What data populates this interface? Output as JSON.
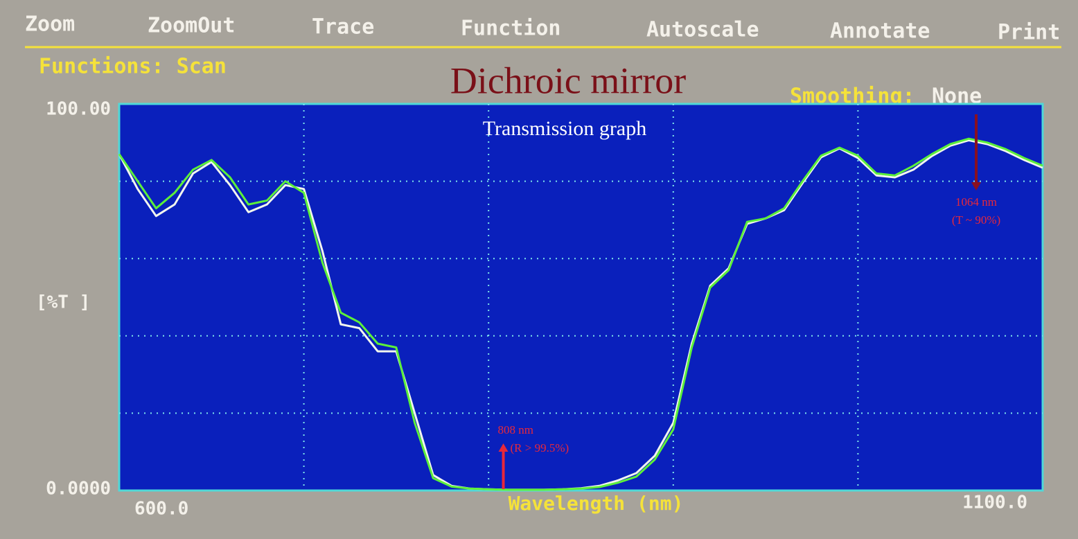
{
  "menu": [
    "Zoom",
    "ZoomOut",
    "Trace",
    "Function",
    "Autoscale",
    "Annotate",
    "Print"
  ],
  "status": {
    "functions": "Functions: Scan",
    "smoothing_label": "Smoothing:",
    "smoothing_value": "None"
  },
  "chart_data": {
    "type": "line",
    "title": "Dichroic mirror",
    "subtitle": "Transmission graph",
    "x_label": "Wavelength (nm)",
    "y_label": "[%T ]",
    "xlim": [
      600,
      1100
    ],
    "ylim": [
      0,
      100
    ],
    "xticks": [
      {
        "value": 600,
        "label": "600.0"
      },
      {
        "value": 1100,
        "label": "1100.0"
      }
    ],
    "yticks": [
      {
        "value": 0,
        "label": "0.0000"
      },
      {
        "value": 100,
        "label": "100.00"
      }
    ],
    "grid": true,
    "xgrid": [
      700,
      800,
      900,
      1000
    ],
    "ygrid": [
      20,
      40,
      60,
      80
    ],
    "x": [
      600,
      610,
      620,
      630,
      640,
      650,
      660,
      670,
      680,
      690,
      700,
      710,
      720,
      730,
      740,
      750,
      760,
      770,
      780,
      790,
      800,
      810,
      820,
      830,
      840,
      850,
      860,
      870,
      880,
      890,
      900,
      910,
      920,
      930,
      940,
      950,
      960,
      970,
      980,
      990,
      1000,
      1010,
      1020,
      1030,
      1040,
      1050,
      1060,
      1070,
      1080,
      1090,
      1100
    ],
    "series": [
      {
        "color": "#f2f6ee",
        "values": [
          87,
          78,
          71,
          74,
          82,
          85,
          79,
          72,
          74,
          79,
          78,
          62,
          43,
          42,
          36,
          36,
          20,
          4,
          1.2,
          0.5,
          0.3,
          0.2,
          0.2,
          0.2,
          0.3,
          0.6,
          1.2,
          2.6,
          4.5,
          9,
          17.5,
          38,
          53,
          57.5,
          69,
          70.4,
          72.5,
          79.5,
          86.2,
          88.5,
          86,
          81.5,
          81,
          83,
          86.5,
          89.2,
          90.6,
          89.6,
          87.8,
          85.5,
          83.5
        ]
      },
      {
        "color": "#5cf03a",
        "values": [
          87,
          80,
          73,
          77,
          83,
          85.5,
          81,
          74,
          75,
          80,
          77,
          59,
          46,
          43.5,
          38,
          37,
          17.5,
          3.2,
          1,
          0.5,
          0.3,
          0.2,
          0.2,
          0.2,
          0.3,
          0.5,
          0.9,
          2,
          3.6,
          8,
          15.8,
          37,
          52.5,
          57,
          69.5,
          70.4,
          73,
          80,
          86.6,
          88.7,
          86.6,
          82,
          81.5,
          84,
          87,
          89.6,
          91,
          90,
          88.3,
          86,
          84
        ]
      }
    ],
    "annotations": [
      {
        "text": "808 nm",
        "note": "(R > 99.5%)",
        "x": 808,
        "arrow": "up",
        "color": "#e8283a"
      },
      {
        "text": "1064 nm",
        "note": "(T ~ 90%)",
        "x": 1064,
        "arrow": "down",
        "color": "#8a1020"
      }
    ]
  }
}
